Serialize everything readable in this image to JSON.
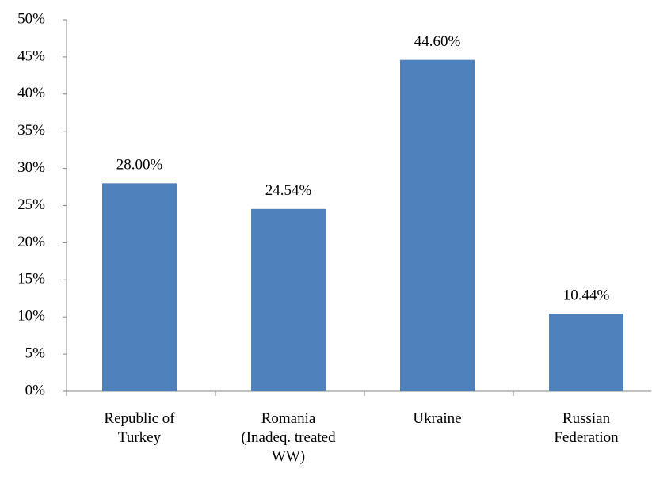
{
  "chart_data": {
    "type": "bar",
    "categories": [
      "Republic of\nTurkey",
      "Romania\n(Inadeq. treated\nWW)",
      "Ukraine",
      "Russian\nFederation"
    ],
    "values": [
      28.0,
      24.54,
      44.6,
      10.44
    ],
    "value_labels": [
      "28.00%",
      "24.54%",
      "44.60%",
      "10.44%"
    ],
    "color": "#4f81bd",
    "ylim": [
      0,
      50
    ],
    "yticks": [
      {
        "value": 0,
        "label": "0%"
      },
      {
        "value": 5,
        "label": "5%"
      },
      {
        "value": 10,
        "label": "10%"
      },
      {
        "value": 15,
        "label": "15%"
      },
      {
        "value": 20,
        "label": "20%"
      },
      {
        "value": 25,
        "label": "25%"
      },
      {
        "value": 30,
        "label": "30%"
      },
      {
        "value": 35,
        "label": "35%"
      },
      {
        "value": 40,
        "label": "40%"
      },
      {
        "value": 45,
        "label": "45%"
      },
      {
        "value": 50,
        "label": "50%"
      }
    ],
    "grid": false
  }
}
